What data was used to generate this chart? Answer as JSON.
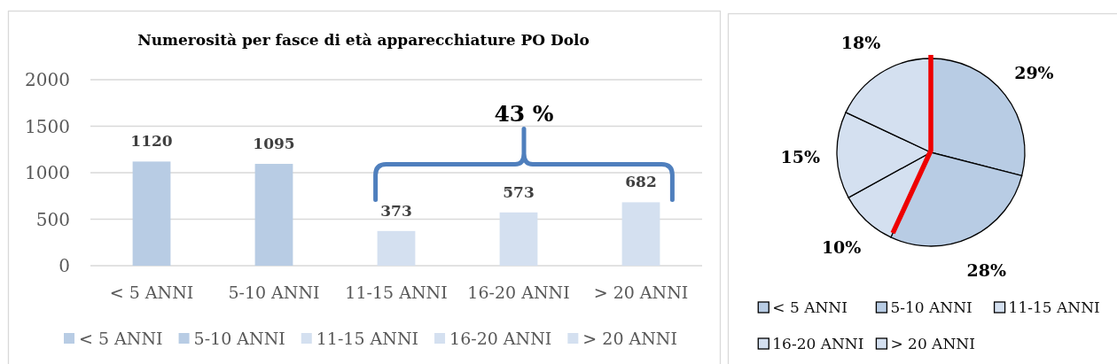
{
  "chart_data": [
    {
      "type": "bar",
      "title": "Numerosità per fasce di età apparecchiature PO Dolo",
      "categories": [
        "< 5 ANNI",
        "5-10 ANNI",
        "11-15 ANNI",
        "16-20 ANNI",
        "> 20 ANNI"
      ],
      "series": [
        {
          "name": "< 5 ANNI",
          "color": "#b8cce4",
          "values": [
            1120,
            null,
            null,
            null,
            null
          ]
        },
        {
          "name": "5-10 ANNI",
          "color": "#b8cce4",
          "values": [
            null,
            1095,
            null,
            null,
            null
          ]
        },
        {
          "name": "11-15 ANNI",
          "color": "#d4e0f0",
          "values": [
            null,
            null,
            373,
            null,
            null
          ]
        },
        {
          "name": "16-20 ANNI",
          "color": "#d4e0f0",
          "values": [
            null,
            null,
            null,
            573,
            null
          ]
        },
        {
          "name": "> 20 ANNI",
          "color": "#d4e0f0",
          "values": [
            null,
            null,
            null,
            null,
            682
          ]
        }
      ],
      "stacked": true,
      "ylim": [
        0,
        2000
      ],
      "yticks": [
        0,
        500,
        1000,
        1500,
        2000
      ],
      "grid": "y",
      "data_labels": true,
      "legend": "bottom",
      "annotations": [
        "43 %"
      ]
    },
    {
      "type": "pie",
      "categories": [
        "< 5 ANNI",
        "5-10 ANNI",
        "11-15 ANNI",
        "16-20 ANNI",
        "> 20 ANNI"
      ],
      "values": [
        29,
        28,
        10,
        15,
        18
      ],
      "colors": [
        "#b8cce4",
        "#b8cce4",
        "#d4e0f0",
        "#d4e0f0",
        "#d4e0f0"
      ],
      "value_labels": [
        "29%",
        "28%",
        "10%",
        "15%",
        "18%"
      ],
      "legend": "bottom"
    }
  ]
}
